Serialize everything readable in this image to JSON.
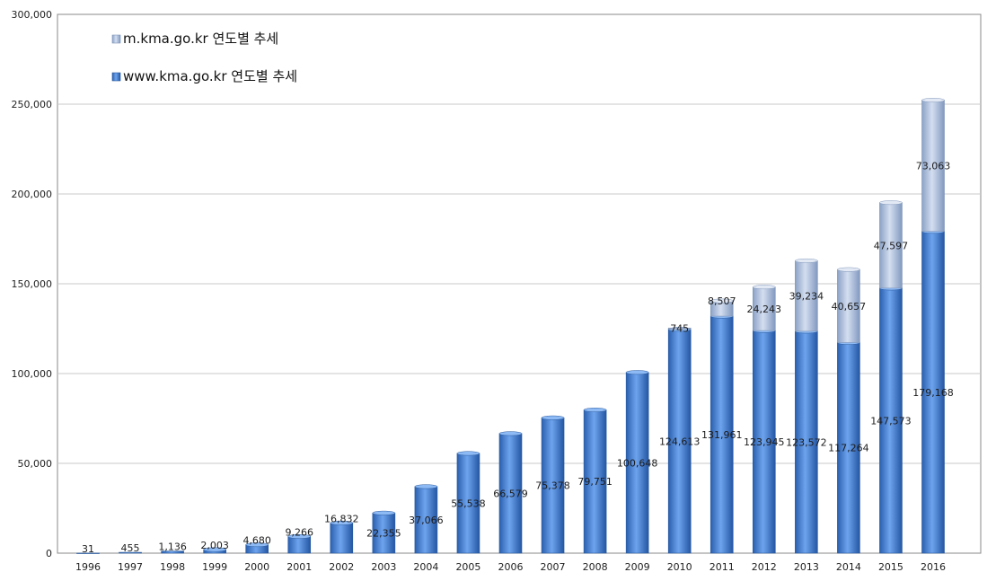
{
  "chart_data": {
    "type": "bar",
    "stacked": true,
    "categories": [
      "1996",
      "1997",
      "1998",
      "1999",
      "2000",
      "2001",
      "2002",
      "2003",
      "2004",
      "2005",
      "2006",
      "2007",
      "2008",
      "2009",
      "2010",
      "2011",
      "2012",
      "2013",
      "2014",
      "2015",
      "2016"
    ],
    "series": [
      {
        "name": "www.kma.go.kr 연도별 추세",
        "color": "#3f7fd4",
        "values": [
          31,
          455,
          1136,
          2003,
          4680,
          9266,
          16832,
          22355,
          37066,
          55538,
          66579,
          75378,
          79751,
          100648,
          124613,
          131961,
          123945,
          123572,
          117264,
          147573,
          179168
        ],
        "labels": [
          "31",
          "455",
          "1,136",
          "2,003",
          "4,680",
          "9,266",
          "16,832",
          "22,355",
          "37,066",
          "55,538",
          "66,579",
          "75,378",
          "79,751",
          "100,648",
          "124,613",
          "131,961",
          "123,945",
          "123,572",
          "117,264",
          "147,573",
          "179,168"
        ]
      },
      {
        "name": "m.kma.go.kr 연도별 추세",
        "color": "#a9bddc",
        "values": [
          null,
          null,
          null,
          null,
          null,
          null,
          null,
          null,
          null,
          null,
          null,
          null,
          null,
          null,
          745,
          8507,
          24243,
          39234,
          40657,
          47597,
          73063
        ],
        "labels": [
          "",
          "",
          "",
          "",
          "",
          "",
          "",
          "",
          "",
          "",
          "",
          "",
          "",
          "",
          "745",
          "8,507",
          "24,243",
          "39,234",
          "40,657",
          "47,597",
          "73,063"
        ]
      }
    ],
    "yticks": [
      "0",
      "50,000",
      "100,000",
      "150,000",
      "200,000",
      "250,000",
      "300,000"
    ],
    "ylim": [
      0,
      300000
    ],
    "title": "",
    "xlabel": "",
    "ylabel": "",
    "grid": true,
    "legend_position": "top-left"
  }
}
